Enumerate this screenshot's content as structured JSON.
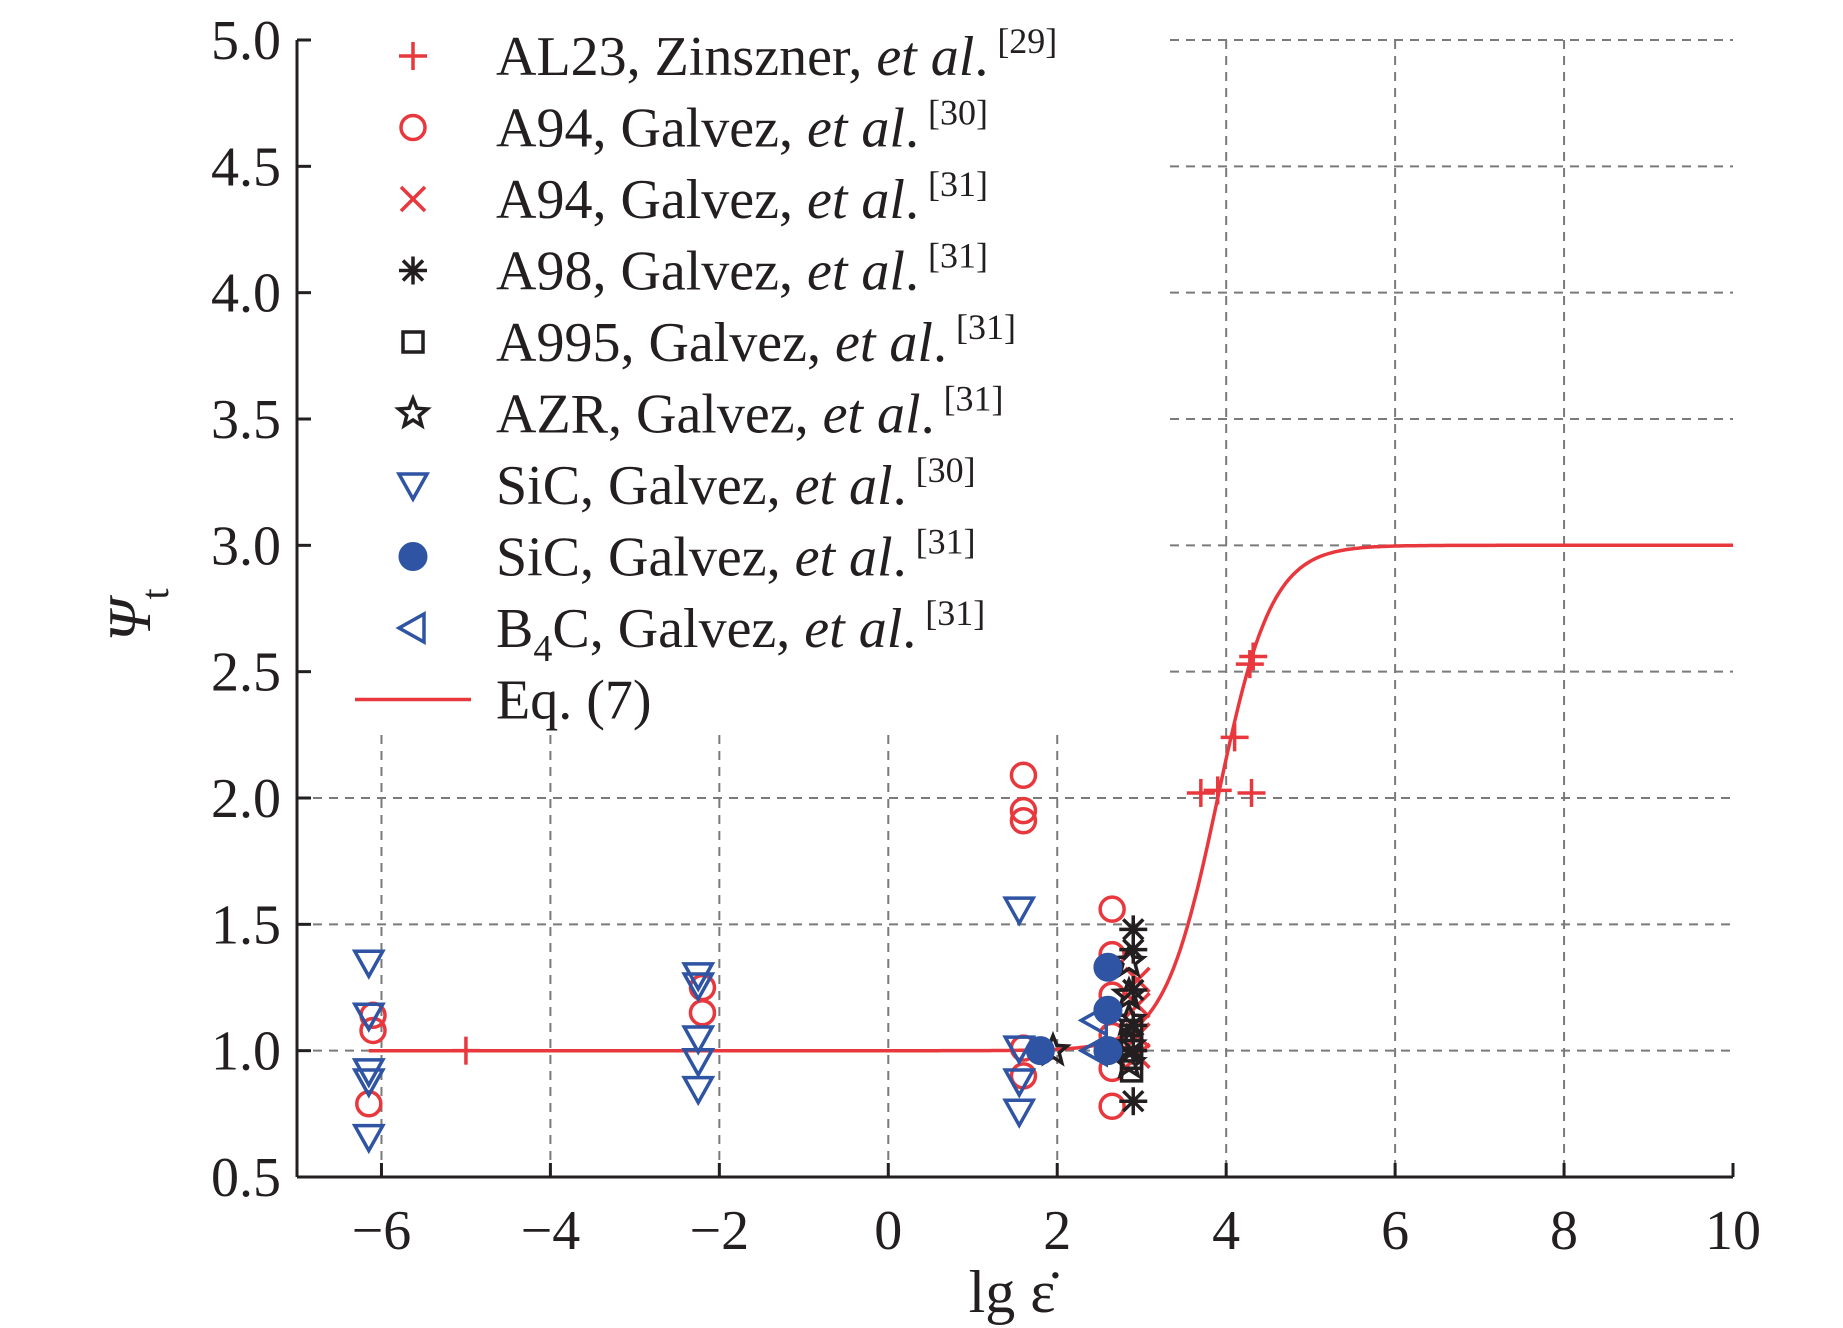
{
  "chart_data": {
    "type": "scatter",
    "xlabel": "lg ε̇",
    "ylabel": "Ψ",
    "ylabel_sub": "t",
    "xlim": [
      -7,
      10
    ],
    "ylim": [
      0.5,
      5.0
    ],
    "xticks": [
      -6,
      -4,
      -2,
      0,
      2,
      4,
      6,
      8,
      10
    ],
    "xtick_labels": [
      "−6",
      "−4",
      "−2",
      "0",
      "2",
      "4",
      "6",
      "8",
      "10"
    ],
    "yticks": [
      0.5,
      1.0,
      1.5,
      2.0,
      2.5,
      3.0,
      3.5,
      4.0,
      4.5,
      5.0
    ],
    "ytick_labels": [
      "0.5",
      "1.0",
      "1.5",
      "2.0",
      "2.5",
      "3.0",
      "3.5",
      "4.0",
      "4.5",
      "5.0"
    ],
    "grid": true,
    "legend_position": "top-left",
    "colors": {
      "red": "#e8383d",
      "black": "#231f20",
      "blue": "#2e54a3"
    },
    "series": [
      {
        "name": "AL23, Zinszner, et al. [29]",
        "legend": {
          "main": "AL23, Zinszner, ",
          "em": "et al",
          "tail": ".",
          "ref": "[29]"
        },
        "marker": "plus",
        "color": "red",
        "points": [
          [
            -5.0,
            1.0
          ],
          [
            3.7,
            2.02
          ],
          [
            3.9,
            2.03
          ],
          [
            4.1,
            2.24
          ],
          [
            4.3,
            2.02
          ],
          [
            4.28,
            2.53
          ],
          [
            4.32,
            2.56
          ]
        ]
      },
      {
        "name": "A94, Galvez, et al. [30]",
        "legend": {
          "main": "A94, Galvez, ",
          "em": "et al",
          "tail": ".",
          "ref": "[30]"
        },
        "marker": "circle-open",
        "color": "red",
        "points": [
          [
            -6.15,
            0.79
          ],
          [
            -6.1,
            1.08
          ],
          [
            -6.1,
            1.14
          ],
          [
            -2.2,
            1.15
          ],
          [
            -2.2,
            1.25
          ],
          [
            1.6,
            2.09
          ],
          [
            1.6,
            1.95
          ],
          [
            1.6,
            1.91
          ],
          [
            1.6,
            0.9
          ],
          [
            1.6,
            1.01
          ],
          [
            2.65,
            1.56
          ],
          [
            2.65,
            1.38
          ],
          [
            2.65,
            1.22
          ],
          [
            2.65,
            1.06
          ],
          [
            2.65,
            0.93
          ],
          [
            2.65,
            0.78
          ]
        ]
      },
      {
        "name": "A94, Galvez, et al. [31]",
        "legend": {
          "main": "A94, Galvez, ",
          "em": "et al",
          "tail": ".",
          "ref": "[31]"
        },
        "marker": "x",
        "color": "red",
        "points": [
          [
            2.95,
            1.28
          ],
          [
            2.95,
            1.18
          ],
          [
            2.95,
            1.06
          ],
          [
            2.95,
            0.98
          ]
        ]
      },
      {
        "name": "A98, Galvez, et al. [31]",
        "legend": {
          "main": "A98, Galvez, ",
          "em": "et al",
          "tail": ".",
          "ref": "[31]"
        },
        "marker": "asterisk",
        "color": "black",
        "points": [
          [
            2.9,
            1.48
          ],
          [
            2.9,
            1.4
          ],
          [
            2.9,
            1.24
          ],
          [
            2.9,
            1.1
          ],
          [
            2.9,
            1.0
          ],
          [
            2.9,
            0.8
          ]
        ]
      },
      {
        "name": "A995, Galvez, et al. [31]",
        "legend": {
          "main": "A995, Galvez, ",
          "em": "et al",
          "tail": ".",
          "ref": "[31]"
        },
        "marker": "square-open",
        "color": "black",
        "points": [
          [
            2.88,
            1.08
          ],
          [
            2.88,
            1.02
          ],
          [
            2.88,
            0.97
          ],
          [
            2.88,
            0.92
          ]
        ]
      },
      {
        "name": "AZR, Galvez, et al. [31]",
        "legend": {
          "main": "AZR, Galvez, ",
          "em": "et al",
          "tail": ".",
          "ref": "[31]"
        },
        "marker": "star",
        "color": "black",
        "points": [
          [
            1.95,
            1.0
          ],
          [
            2.85,
            1.35
          ],
          [
            2.85,
            1.22
          ],
          [
            2.85,
            1.12
          ],
          [
            2.85,
            1.02
          ],
          [
            2.85,
            0.95
          ]
        ]
      },
      {
        "name": "SiC, Galvez, et al. [30]",
        "legend": {
          "main": "SiC, Galvez, ",
          "em": "et al",
          "tail": ".",
          "ref": "[30]"
        },
        "marker": "triangle-down-open",
        "color": "blue",
        "points": [
          [
            -6.15,
            1.35
          ],
          [
            -6.15,
            1.14
          ],
          [
            -6.15,
            0.92
          ],
          [
            -6.15,
            0.88
          ],
          [
            -6.15,
            0.66
          ],
          [
            -2.25,
            1.3
          ],
          [
            -2.25,
            1.26
          ],
          [
            -2.25,
            1.05
          ],
          [
            -2.25,
            0.96
          ],
          [
            -2.25,
            0.85
          ],
          [
            1.55,
            1.56
          ],
          [
            1.55,
            1.01
          ],
          [
            1.55,
            0.88
          ],
          [
            1.55,
            0.76
          ]
        ]
      },
      {
        "name": "SiC, Galvez, et al. [31]",
        "legend": {
          "main": "SiC, Galvez, ",
          "em": "et al",
          "tail": ".",
          "ref": "[31]"
        },
        "marker": "circle-filled",
        "color": "blue",
        "points": [
          [
            1.8,
            1.0
          ],
          [
            2.6,
            1.33
          ],
          [
            2.6,
            1.16
          ],
          [
            2.6,
            1.0
          ]
        ]
      },
      {
        "name": "B4C, Galvez, et al. [31]",
        "legend": {
          "main": "B",
          "sub": "4",
          "main2": "C, Galvez, ",
          "em": "et al",
          "tail": ".",
          "ref": "[31]"
        },
        "marker": "triangle-left-open",
        "color": "blue",
        "points": [
          [
            2.45,
            1.12
          ],
          [
            2.45,
            1.0
          ]
        ]
      },
      {
        "name": "Eq. (7)",
        "legend": {
          "main": "Eq. (7)"
        },
        "marker": "line",
        "color": "red",
        "curve": {
          "function": "sigmoid",
          "low": 1.0,
          "high": 3.0,
          "center": 3.9,
          "scale": 0.32,
          "x_from": -6.15,
          "x_to": 10.0
        }
      }
    ]
  }
}
